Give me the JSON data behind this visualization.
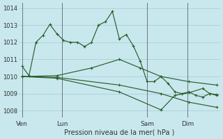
{
  "background_color": "#c8e8ee",
  "grid_color": "#a8ccd4",
  "line_color": "#2a5e2a",
  "xlabel": "Pression niveau de la mer( hPa )",
  "ylim": [
    1007.6,
    1014.3
  ],
  "yticks": [
    1008,
    1009,
    1010,
    1011,
    1012,
    1013,
    1014
  ],
  "day_labels": [
    "Ven",
    "Lun",
    "Sam",
    "Dim"
  ],
  "total_points": 29,
  "series": [
    {
      "x": [
        0,
        1,
        2,
        3,
        4,
        5,
        6,
        7,
        8,
        9,
        10,
        11,
        12,
        13,
        14,
        15,
        16,
        17,
        18,
        19,
        20,
        21,
        22,
        23,
        24,
        25,
        26,
        27,
        28
      ],
      "y": [
        1010.6,
        1010.05,
        1012.0,
        1012.4,
        1013.05,
        1012.5,
        1012.1,
        1012.0,
        1012.0,
        1011.75,
        1012.0,
        1013.0,
        1013.2,
        1013.8,
        1012.2,
        1012.45,
        1011.8,
        1010.9,
        1009.7,
        1009.7,
        1010.0,
        1009.6,
        1009.1,
        1009.0,
        1009.1,
        1008.9,
        1008.8,
        1009.0,
        1008.95
      ],
      "marker": "+"
    },
    {
      "x": [
        0,
        5,
        10,
        14,
        17,
        20,
        24,
        28
      ],
      "y": [
        1010.0,
        1010.05,
        1010.5,
        1011.0,
        1010.5,
        1010.0,
        1009.7,
        1009.5
      ],
      "marker": "+"
    },
    {
      "x": [
        0,
        5,
        14,
        20,
        24,
        28
      ],
      "y": [
        1010.0,
        1009.95,
        1009.5,
        1009.0,
        1008.5,
        1008.2
      ],
      "marker": "+"
    },
    {
      "x": [
        0,
        5,
        14,
        20,
        22,
        24,
        26,
        27,
        28
      ],
      "y": [
        1010.0,
        1009.9,
        1009.1,
        1008.05,
        1008.9,
        1009.05,
        1009.3,
        1009.0,
        1008.9
      ],
      "marker": "+"
    }
  ]
}
